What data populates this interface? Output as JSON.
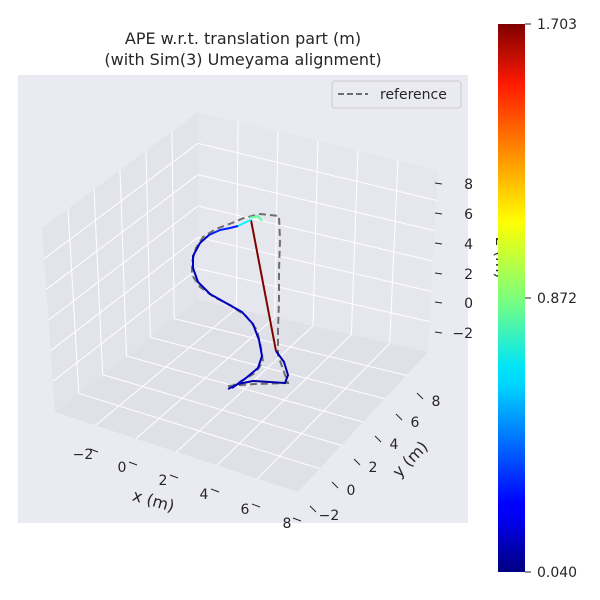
{
  "chart_data": {
    "type": "line",
    "title_line1": "APE w.r.t. translation part (m)",
    "title_line2": "(with Sim(3) Umeyama alignment)",
    "xlabel": "x (m)",
    "ylabel": "y (m)",
    "zlabel": "z (m)",
    "x_ticks": [
      "−2",
      "0",
      "2",
      "4",
      "6",
      "8"
    ],
    "y_ticks": [
      "−2",
      "0",
      "2",
      "4",
      "6",
      "8"
    ],
    "z_ticks": [
      "−2",
      "0",
      "2",
      "4",
      "6",
      "8"
    ],
    "legend": {
      "entries": [
        "reference"
      ],
      "placement": "top-right"
    },
    "colorbar": {
      "colormap": "jet",
      "min_label": "0.040",
      "mid_label": "0.872",
      "max_label": "1.703",
      "min": 0.04,
      "mid": 0.872,
      "max": 1.703
    },
    "grid": true,
    "series": [
      {
        "role": "reference",
        "style": "dashed",
        "color": "#6e6e6e",
        "points": [
          [
            228,
            386
          ],
          [
            255,
            384
          ],
          [
            288,
            383
          ],
          [
            284,
            372
          ],
          [
            278,
            355
          ],
          [
            278,
            330
          ],
          [
            279,
            300
          ],
          [
            279,
            270
          ],
          [
            280,
            240
          ],
          [
            279,
            216
          ],
          [
            260,
            214
          ],
          [
            244,
            218
          ],
          [
            232,
            223
          ],
          [
            216,
            229
          ],
          [
            203,
            237
          ],
          [
            196,
            248
          ],
          [
            192,
            262
          ],
          [
            192,
            275
          ],
          [
            200,
            287
          ],
          [
            214,
            297
          ],
          [
            230,
            305
          ],
          [
            246,
            316
          ],
          [
            257,
            330
          ],
          [
            261,
            348
          ],
          [
            263,
            362
          ],
          [
            255,
            373
          ],
          [
            238,
            383
          ],
          [
            228,
            388
          ]
        ]
      },
      {
        "role": "estimate",
        "style": "solid",
        "error_colored": true,
        "segments": [
          {
            "points": [
              [
                228,
                389
              ],
              [
                238,
                384
              ],
              [
                253,
                381
              ],
              [
                270,
                382
              ],
              [
                285,
                383
              ],
              [
                288,
                375
              ],
              [
                284,
                362
              ],
              [
                276,
                351
              ]
            ],
            "error": 0.1
          },
          {
            "points": [
              [
                276,
                351
              ],
              [
                251,
                220
              ]
            ],
            "error": 1.7
          },
          {
            "points": [
              [
                251,
                220
              ],
              [
                246,
                222
              ],
              [
                238,
                226
              ]
            ],
            "error": 0.65
          },
          {
            "points": [
              [
                238,
                226
              ],
              [
                230,
                228
              ],
              [
                220,
                230
              ],
              [
                209,
                235
              ]
            ],
            "error": 0.3
          },
          {
            "points": [
              [
                209,
                235
              ],
              [
                200,
                243
              ],
              [
                193,
                256
              ],
              [
                193,
                268
              ],
              [
                198,
                282
              ],
              [
                210,
                294
              ],
              [
                226,
                303
              ],
              [
                242,
                312
              ],
              [
                253,
                324
              ],
              [
                259,
                340
              ],
              [
                262,
                356
              ],
              [
                258,
                368
              ],
              [
                246,
                378
              ],
              [
                232,
                388
              ]
            ],
            "error": 0.15
          },
          {
            "points": [
              [
                249,
                218
              ],
              [
                258,
                216
              ],
              [
                262,
                221
              ]
            ],
            "error": 0.82
          }
        ]
      }
    ]
  }
}
